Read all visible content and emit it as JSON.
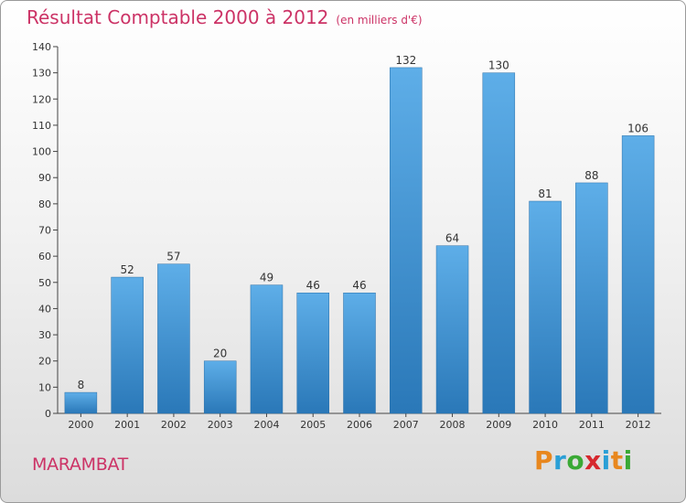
{
  "title": "Résultat Comptable 2000 à 2012",
  "subtitle": "(en milliers d'€)",
  "commune": "MARAMBAT",
  "logo": {
    "letters": [
      "P",
      "r",
      "o",
      "x",
      "i",
      "t",
      "i"
    ],
    "colors": [
      "#e8871e",
      "#2a9fd6",
      "#3aa935",
      "#d6282e",
      "#2a9fd6",
      "#e8871e",
      "#3aa935"
    ]
  },
  "chart_data": {
    "type": "bar",
    "categories": [
      "2000",
      "2001",
      "2002",
      "2003",
      "2004",
      "2005",
      "2006",
      "2007",
      "2008",
      "2009",
      "2010",
      "2011",
      "2012"
    ],
    "values": [
      8,
      52,
      57,
      20,
      49,
      46,
      46,
      132,
      64,
      130,
      81,
      88,
      106
    ],
    "ylim": [
      0,
      140
    ],
    "yticks": [
      0,
      10,
      20,
      30,
      40,
      50,
      60,
      70,
      80,
      90,
      100,
      110,
      120,
      130,
      140
    ],
    "grid": false,
    "bar_color": "#3d92d4"
  }
}
